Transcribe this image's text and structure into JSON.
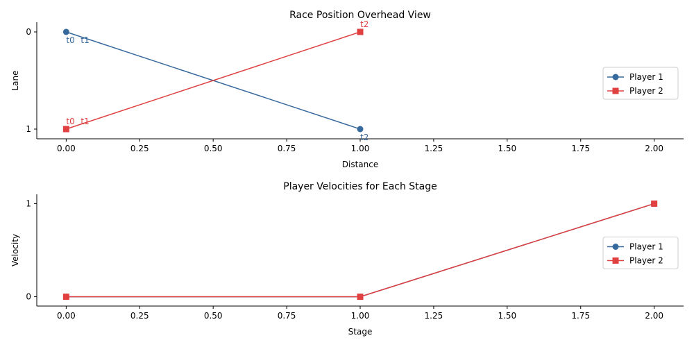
{
  "chart_data": [
    {
      "type": "line",
      "title": "Race Position Overhead View",
      "xlabel": "Distance",
      "ylabel": "Lane",
      "xlim": [
        -0.1,
        2.1
      ],
      "ylim": [
        1.1,
        -0.1
      ],
      "y_inverted": true,
      "xticks": [
        "0.00",
        "0.25",
        "0.50",
        "0.75",
        "1.00",
        "1.25",
        "1.50",
        "1.75",
        "2.00"
      ],
      "xtick_values": [
        0,
        0.25,
        0.5,
        0.75,
        1.0,
        1.25,
        1.5,
        1.75,
        2.0
      ],
      "yticks": [
        "0",
        "1"
      ],
      "ytick_values": [
        0,
        1
      ],
      "legend_position": "center-right",
      "series": [
        {
          "name": "Player 1",
          "color": "#36699c",
          "marker": "circle",
          "x": [
            0,
            1
          ],
          "y": [
            0,
            1
          ],
          "annotations": [
            {
              "text": "t0",
              "x": 0,
              "y": 0
            },
            {
              "text": "t1",
              "x": 0,
              "y": 0
            },
            {
              "text": "t2",
              "x": 1,
              "y": 1
            }
          ]
        },
        {
          "name": "Player 2",
          "color": "#e04040",
          "marker": "square",
          "x": [
            0,
            1
          ],
          "y": [
            1,
            0
          ],
          "annotations": [
            {
              "text": "t0",
              "x": 0,
              "y": 1
            },
            {
              "text": "t1",
              "x": 0,
              "y": 1
            },
            {
              "text": "t2",
              "x": 1,
              "y": 0
            }
          ]
        }
      ]
    },
    {
      "type": "line",
      "title": "Player Velocities for Each Stage",
      "xlabel": "Stage",
      "ylabel": "Velocity",
      "xlim": [
        -0.1,
        2.1
      ],
      "ylim": [
        -0.1,
        1.1
      ],
      "xticks": [
        "0.00",
        "0.25",
        "0.50",
        "0.75",
        "1.00",
        "1.25",
        "1.50",
        "1.75",
        "2.00"
      ],
      "xtick_values": [
        0,
        0.25,
        0.5,
        0.75,
        1.0,
        1.25,
        1.5,
        1.75,
        2.0
      ],
      "yticks": [
        "0",
        "1"
      ],
      "ytick_values": [
        0,
        1
      ],
      "legend_position": "center-right",
      "series": [
        {
          "name": "Player 1",
          "color": "#36699c",
          "marker": "circle",
          "x": [
            0,
            1,
            2
          ],
          "y": [
            0,
            0,
            1
          ]
        },
        {
          "name": "Player 2",
          "color": "#e04040",
          "marker": "square",
          "x": [
            0,
            1,
            2
          ],
          "y": [
            0,
            0,
            1
          ]
        }
      ]
    }
  ]
}
